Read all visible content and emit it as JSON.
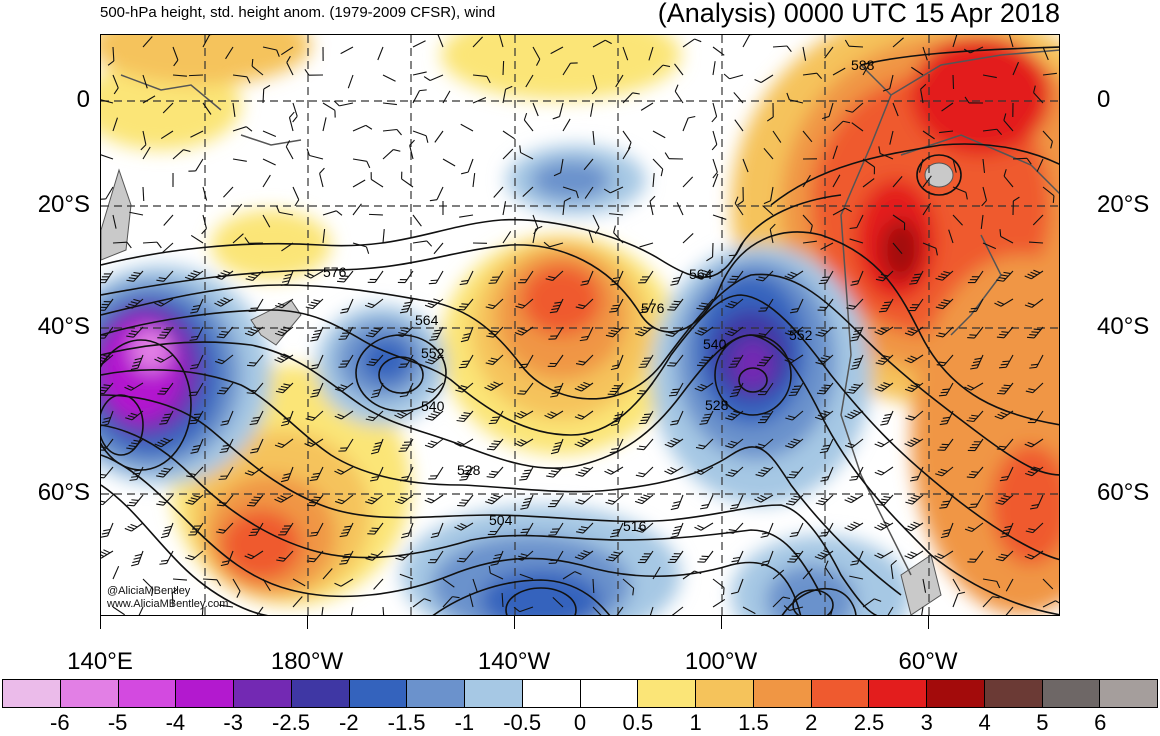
{
  "header": {
    "left_title": "500-hPa height, std. height anom. (1979-2009 CFSR), wind",
    "right_title": "(Analysis) 0000 UTC 15 Apr 2018"
  },
  "axes": {
    "lat_labels": [
      "0",
      "20°S",
      "40°S",
      "60°S"
    ],
    "lon_labels": [
      "140°E",
      "180°W",
      "140°W",
      "100°W",
      "60°W"
    ]
  },
  "map": {
    "projection": "cylindrical equidistant",
    "domain": "South Pacific, 8°N–75°S",
    "grid_lines": "dashed",
    "contour_labels": [
      "588",
      "576",
      "564",
      "552",
      "540",
      "528",
      "516",
      "504",
      "576",
      "564",
      "552",
      "540",
      "528"
    ],
    "features": [
      "height-contours",
      "standardized-anomaly-shading",
      "wind-barbs",
      "coastlines"
    ]
  },
  "credit": {
    "line1": "@AliciaMBentley",
    "line2": "www.AliciaMBentley.com"
  },
  "colorbar": {
    "colors": [
      "#ebbbea",
      "#e27fe5",
      "#d34ae0",
      "#b319cf",
      "#7329b3",
      "#3f37a4",
      "#3463bd",
      "#6b92cc",
      "#a6c8e4",
      "#ffffff",
      "#ffffff",
      "#fbe577",
      "#f5c35b",
      "#f09644",
      "#ef5a2f",
      "#e31d1d",
      "#a30b0b",
      "#6b3a35",
      "#6e6766",
      "#a59e9c"
    ],
    "labels": [
      "-6",
      "-5",
      "-4",
      "-3",
      "-2.5",
      "-2",
      "-1.5",
      "-1",
      "-0.5",
      "0",
      "0.5",
      "1",
      "1.5",
      "2",
      "2.5",
      "3",
      "4",
      "5",
      "6"
    ]
  }
}
